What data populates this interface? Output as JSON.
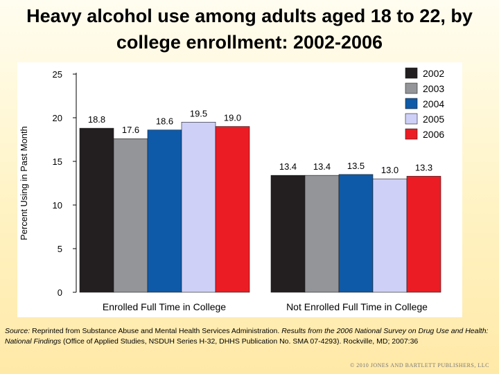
{
  "slide": {
    "title": "Heavy alcohol use among adults aged 18 to 22, by college enrollment: 2002-2006"
  },
  "source": {
    "label": "Source:",
    "text_1": " Reprinted from Substance Abuse and Mental Health Services Administration. ",
    "italic": "Results from the 2006 National Survey on Drug Use and Health: National Findings",
    "text_2": " (Office of Applied Studies, NSDUH Series H-32, DHHS Publication No. SMA 07-4293). Rockville, MD; 2007:36"
  },
  "copyright": "© 2010 JONES AND BARTLETT PUBLISHERS, LLC",
  "chart_data": {
    "type": "bar",
    "title": "Heavy alcohol use among adults aged 18 to 22, by college enrollment: 2002-2006",
    "xlabel": "",
    "ylabel": "Percent Using in Past Month",
    "ylim": [
      0,
      25
    ],
    "yticks": [
      0,
      5,
      10,
      15,
      20,
      25
    ],
    "grid": false,
    "legend_position": "top-right",
    "categories": [
      "Enrolled Full Time in College",
      "Not Enrolled Full Time in College"
    ],
    "series": [
      {
        "name": "2002",
        "color": "#231f20",
        "values": [
          18.8,
          13.4
        ]
      },
      {
        "name": "2003",
        "color": "#939598",
        "values": [
          17.6,
          13.4
        ]
      },
      {
        "name": "2004",
        "color": "#0f5aa8",
        "values": [
          18.6,
          13.5
        ]
      },
      {
        "name": "2005",
        "color": "#cfd0f7",
        "values": [
          19.5,
          13.0
        ]
      },
      {
        "name": "2006",
        "color": "#ec1c24",
        "values": [
          19.0,
          13.3
        ]
      }
    ],
    "data_labels": [
      [
        "18.8",
        "17.6",
        "18.6",
        "19.5",
        "19.0"
      ],
      [
        "13.4",
        "13.4",
        "13.5",
        "13.0",
        "13.3"
      ]
    ]
  }
}
